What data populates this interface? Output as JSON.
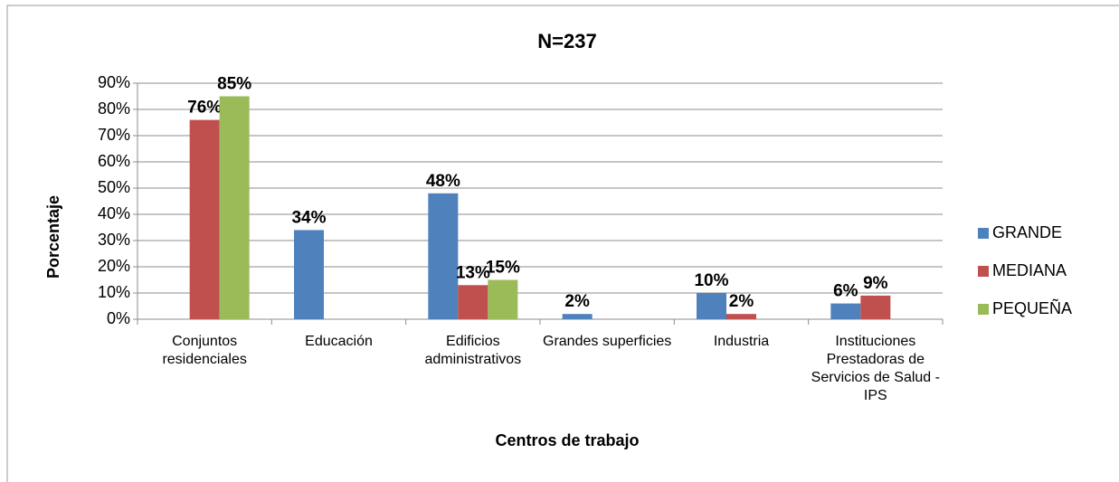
{
  "chart_data": {
    "type": "bar",
    "title": "N=237",
    "x_label": "Centros de trabajo",
    "y_label": "Porcentaje",
    "categories": [
      "Conjuntos residenciales",
      "Educación",
      "Edificios administrativos",
      "Grandes superficies",
      "Industria",
      "Instituciones Prestadoras de Servicios de Salud - IPS"
    ],
    "series": [
      {
        "name": "GRANDE",
        "color": "#4f81bd",
        "values": [
          null,
          34,
          48,
          2,
          10,
          6
        ],
        "value_labels": [
          null,
          "34%",
          "48%",
          "2%",
          "10%",
          "6%"
        ]
      },
      {
        "name": "MEDIANA",
        "color": "#c0504d",
        "values": [
          76,
          null,
          13,
          null,
          2,
          9
        ],
        "value_labels": [
          "76%",
          null,
          "13%",
          null,
          "2%",
          "9%"
        ]
      },
      {
        "name": "PEQUEÑA",
        "color": "#9bbb59",
        "values": [
          85,
          null,
          15,
          null,
          null,
          null
        ],
        "value_labels": [
          "85%",
          null,
          "15%",
          null,
          null,
          null
        ]
      }
    ],
    "ylim": [
      0,
      90
    ],
    "yticks": [
      {
        "value": 0,
        "label": "0%"
      },
      {
        "value": 10,
        "label": "10%"
      },
      {
        "value": 20,
        "label": "20%"
      },
      {
        "value": 30,
        "label": "30%"
      },
      {
        "value": 40,
        "label": "40%"
      },
      {
        "value": 50,
        "label": "50%"
      },
      {
        "value": 60,
        "label": "60%"
      },
      {
        "value": 70,
        "label": "70%"
      },
      {
        "value": 80,
        "label": "80%"
      },
      {
        "value": 90,
        "label": "90%"
      }
    ],
    "grid": true,
    "legend": "right"
  }
}
